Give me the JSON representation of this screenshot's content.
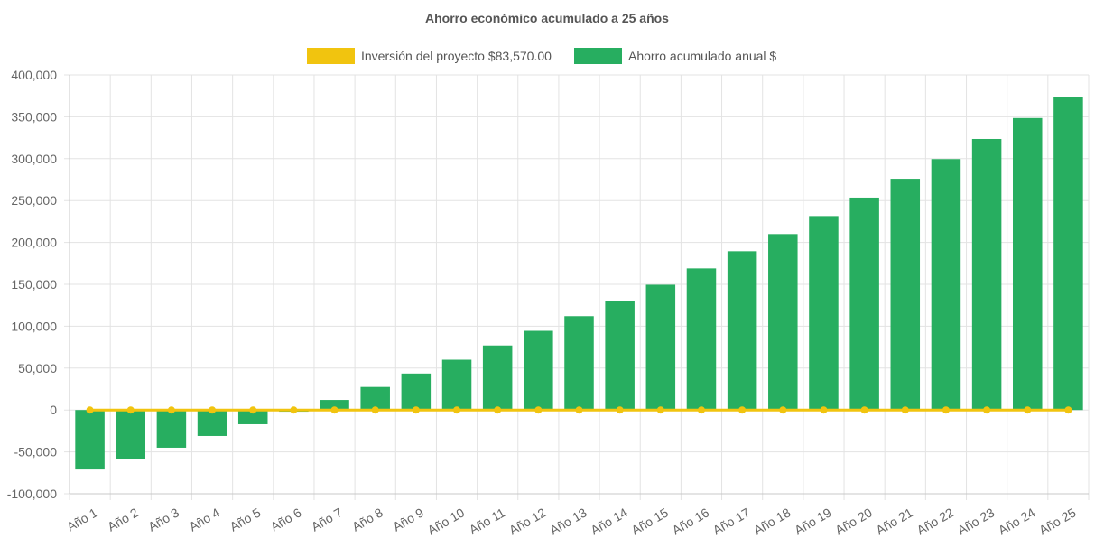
{
  "chart_data": {
    "type": "bar",
    "title": "Ahorro económico acumulado a 25 años",
    "categories": [
      "Año 1",
      "Año 2",
      "Año 3",
      "Año 4",
      "Año 5",
      "Año 6",
      "Año 7",
      "Año 8",
      "Año 9",
      "Año 10",
      "Año 11",
      "Año 12",
      "Año 13",
      "Año 14",
      "Año 15",
      "Año 16",
      "Año 17",
      "Año 18",
      "Año 19",
      "Año 20",
      "Año 21",
      "Año 22",
      "Año 23",
      "Año 24",
      "Año 25"
    ],
    "series": [
      {
        "name": "Inversión del proyecto $83,570.00",
        "type": "line",
        "color": "#f1c40f",
        "values": [
          0,
          0,
          0,
          0,
          0,
          0,
          0,
          0,
          0,
          0,
          0,
          0,
          0,
          0,
          0,
          0,
          0,
          0,
          0,
          0,
          0,
          0,
          0,
          0,
          0
        ]
      },
      {
        "name": "Ahorro acumulado anual $",
        "type": "bar",
        "color": "#27ae60",
        "values": [
          -71000,
          -58000,
          -45000,
          -31000,
          -17000,
          -2000,
          12000,
          27500,
          43500,
          60000,
          77000,
          94500,
          112000,
          130500,
          149500,
          169000,
          189500,
          210000,
          231500,
          253500,
          276000,
          299500,
          323500,
          348500,
          373500
        ]
      }
    ],
    "ylim": [
      -100000,
      400000
    ],
    "yticks": [
      "400,000",
      "350,000",
      "300,000",
      "250,000",
      "200,000",
      "150,000",
      "100,000",
      "50,000",
      "0",
      "-50,000",
      "-100,000"
    ],
    "ytick_values": [
      400000,
      350000,
      300000,
      250000,
      200000,
      150000,
      100000,
      50000,
      0,
      -50000,
      -100000
    ],
    "grid": true,
    "legend_position": "top-center"
  }
}
